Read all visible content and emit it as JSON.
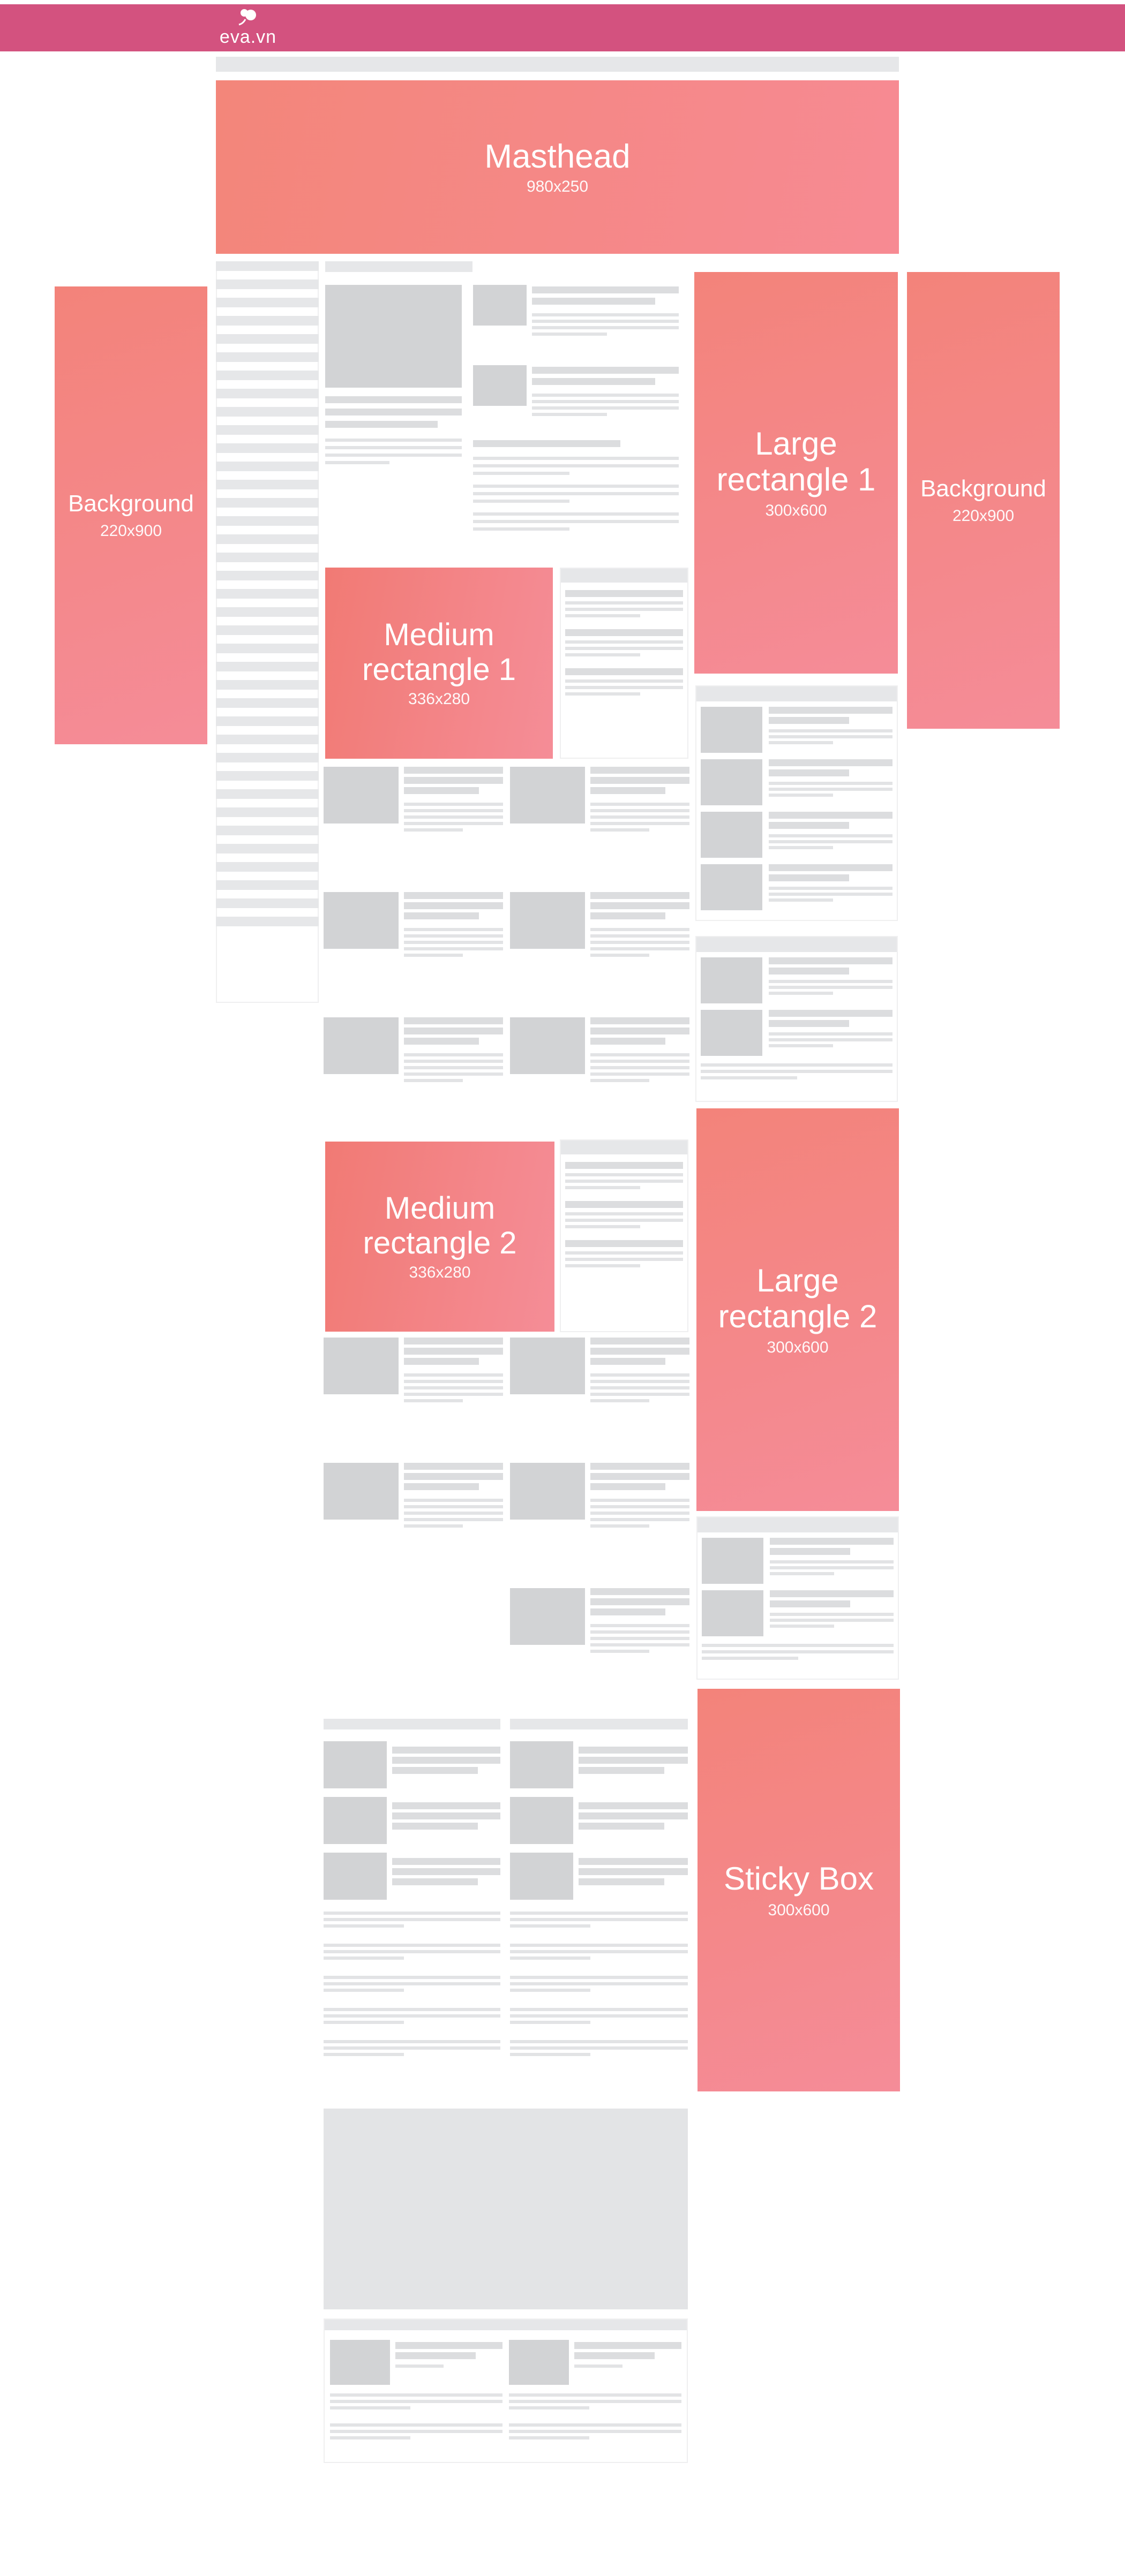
{
  "header": {
    "logo_text": "eva.vn",
    "brand_color": "#d3527f",
    "logo_icon": "flower-icon"
  },
  "ads": {
    "masthead": {
      "label": "Masthead",
      "size": "980x250"
    },
    "background_left": {
      "label": "Background",
      "size": "220x900"
    },
    "background_right": {
      "label": "Background",
      "size": "220x900"
    },
    "large_rectangle_1": {
      "label_line1": "Large",
      "label_line2": "rectangle 1",
      "size": "300x600"
    },
    "medium_rectangle_1": {
      "label_line1": "Medium",
      "label_line2": "rectangle 1",
      "size": "336x280"
    },
    "medium_rectangle_2": {
      "label_line1": "Medium",
      "label_line2": "rectangle 2",
      "size": "336x280"
    },
    "large_rectangle_2": {
      "label_line1": "Large",
      "label_line2": "rectangle 2",
      "size": "300x600"
    },
    "sticky_box": {
      "label": "Sticky Box",
      "size": "300x600"
    }
  },
  "colors": {
    "ad_start": "#f3867a",
    "ad_end": "#f78a93",
    "placeholder": "#e6e7e9"
  }
}
